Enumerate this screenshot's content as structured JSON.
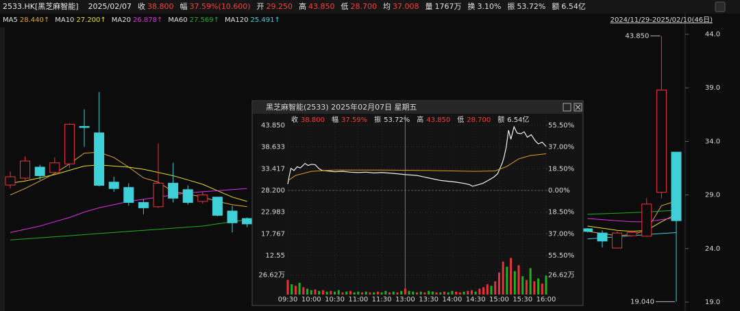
{
  "header": {
    "symbol": "2533.HK[黑芝麻智能]",
    "date": "2025/02/07",
    "items": [
      {
        "label": "收",
        "value": "38.800",
        "color": "#ff3b3b"
      },
      {
        "label": "幅",
        "value": "37.59%(10.600)",
        "color": "#ff3b3b"
      },
      {
        "label": "开",
        "value": "29.250",
        "color": "#ff3b3b"
      },
      {
        "label": "高",
        "value": "43.850",
        "color": "#ff3b3b"
      },
      {
        "label": "低",
        "value": "28.700",
        "color": "#ff3b3b"
      },
      {
        "label": "均",
        "value": "37.008",
        "color": "#ff3b3b"
      },
      {
        "label": "量",
        "value": "1767万",
        "color": "#e0e0e0"
      },
      {
        "label": "换",
        "value": "3.10%",
        "color": "#e0e0e0"
      },
      {
        "label": "振",
        "value": "53.72%",
        "color": "#e0e0e0"
      },
      {
        "label": "额",
        "value": "6.54亿",
        "color": "#e0e0e0"
      }
    ],
    "range": "2024/11/29-2025/02/10(46日)"
  },
  "chart_data": [
    {
      "type": "candlestick",
      "up_color": "#f0353d",
      "down_color": "#3fcfd6",
      "open": [
        29.93,
        30.57,
        31.6,
        31.1,
        31.9,
        35.4,
        34.8,
        30.2,
        29.7,
        28.3,
        27.9,
        30.1,
        29.5,
        28.4,
        28.8,
        27.5,
        26.8,
        null,
        null,
        null,
        null,
        null,
        null,
        null,
        null,
        null,
        null,
        null,
        null,
        null,
        null,
        null,
        null,
        null,
        null,
        null,
        null,
        null,
        null,
        25.85,
        25.45,
        24.05,
        25.2,
        25.15,
        29.25,
        33.0
      ],
      "high": [
        31.2,
        32.6,
        31.8,
        32.5,
        35.7,
        37.0,
        38.6,
        30.7,
        30.1,
        28.6,
        33.8,
        32.0,
        29.9,
        29.3,
        28.8,
        28.0,
        26.9,
        null,
        null,
        null,
        null,
        null,
        null,
        null,
        null,
        null,
        null,
        null,
        null,
        null,
        null,
        null,
        null,
        null,
        null,
        null,
        null,
        null,
        null,
        25.9,
        25.7,
        25.6,
        25.7,
        28.7,
        43.85,
        33.0
      ],
      "low": [
        29.6,
        30.4,
        30.4,
        30.9,
        31.5,
        33.5,
        29.8,
        29.3,
        28.0,
        27.2,
        27.8,
        28.3,
        28.1,
        28.2,
        27.0,
        25.5,
        26.0,
        null,
        null,
        null,
        null,
        null,
        null,
        null,
        null,
        null,
        null,
        null,
        null,
        null,
        null,
        null,
        null,
        null,
        null,
        null,
        null,
        null,
        null,
        25.5,
        24.1,
        24.0,
        25.1,
        25.1,
        28.7,
        19.04
      ],
      "close": [
        30.7,
        32.17,
        30.8,
        32.0,
        35.6,
        35.3,
        29.9,
        29.6,
        28.3,
        27.8,
        30.1,
        28.7,
        28.3,
        29.0,
        27.1,
        26.4,
        26.3,
        null,
        null,
        null,
        null,
        null,
        null,
        null,
        null,
        null,
        null,
        null,
        null,
        null,
        null,
        null,
        null,
        null,
        null,
        null,
        null,
        null,
        null,
        25.6,
        24.7,
        25.45,
        25.5,
        28.15,
        38.8,
        26.6
      ],
      "series": [
        {
          "name": "MA5",
          "legend_value": "28.440↑",
          "color": "#e0a83a",
          "values": [
            29.0,
            29.6,
            30.3,
            31.0,
            31.9,
            32.9,
            33.0,
            32.5,
            31.6,
            30.6,
            30.2,
            29.3,
            29.1,
            28.8,
            28.4,
            28.1,
            27.9,
            null,
            null,
            null,
            null,
            null,
            null,
            null,
            null,
            null,
            null,
            null,
            null,
            null,
            null,
            null,
            null,
            null,
            null,
            null,
            null,
            null,
            null,
            25.6,
            25.4,
            25.2,
            25.3,
            25.7,
            28.0,
            28.44
          ]
        },
        {
          "name": "MA10",
          "legend_value": "27.200↑",
          "color": "#e6e02a",
          "values": [
            30.1,
            30.3,
            30.6,
            30.9,
            31.3,
            31.7,
            31.8,
            31.7,
            31.6,
            31.4,
            31.1,
            30.8,
            30.4,
            30.0,
            29.4,
            28.8,
            28.4,
            null,
            null,
            null,
            null,
            null,
            null,
            null,
            null,
            null,
            null,
            null,
            null,
            null,
            null,
            null,
            null,
            null,
            null,
            null,
            null,
            null,
            null,
            26.1,
            25.9,
            25.7,
            25.6,
            25.7,
            26.5,
            27.2
          ]
        },
        {
          "name": "MA20",
          "legend_value": "26.878↑",
          "color": "#e030e0",
          "values": [
            25.5,
            25.8,
            26.1,
            26.5,
            26.9,
            27.4,
            27.8,
            28.1,
            28.4,
            28.6,
            28.8,
            29.0,
            29.2,
            29.3,
            29.4,
            29.5,
            29.6,
            null,
            null,
            null,
            null,
            null,
            null,
            null,
            null,
            null,
            null,
            null,
            null,
            null,
            null,
            null,
            null,
            null,
            null,
            null,
            null,
            null,
            null,
            26.8,
            26.7,
            26.6,
            26.5,
            26.5,
            26.7,
            26.878
          ]
        },
        {
          "name": "MA60",
          "legend_value": "27.569↑",
          "color": "#22b022",
          "values": [
            24.8,
            24.9,
            25.0,
            25.1,
            25.2,
            25.3,
            25.4,
            25.5,
            25.6,
            25.7,
            25.8,
            25.9,
            26.0,
            26.1,
            26.3,
            26.5,
            26.7,
            null,
            null,
            null,
            null,
            null,
            null,
            null,
            null,
            null,
            null,
            null,
            null,
            null,
            null,
            null,
            null,
            null,
            null,
            null,
            null,
            null,
            null,
            27.2,
            27.25,
            27.3,
            27.35,
            27.4,
            27.5,
            27.569
          ]
        },
        {
          "name": "MA120",
          "legend_value": "25.491↑",
          "color": "#3fd0e0",
          "values": [
            null,
            null,
            null,
            null,
            null,
            null,
            null,
            null,
            null,
            null,
            null,
            null,
            null,
            null,
            null,
            null,
            null,
            null,
            null,
            null,
            null,
            null,
            null,
            null,
            null,
            null,
            null,
            null,
            null,
            null,
            null,
            null,
            null,
            null,
            null,
            null,
            null,
            null,
            null,
            24.9,
            25.0,
            25.1,
            25.2,
            25.3,
            25.4,
            25.491
          ]
        }
      ],
      "ylim": [
        18.17,
        45.6
      ],
      "yticks": [
        {
          "value": 44,
          "label": "44.0"
        },
        {
          "value": 39,
          "label": "39.0"
        },
        {
          "value": 34,
          "label": "34.0"
        },
        {
          "value": 29,
          "label": "29.0"
        },
        {
          "value": 24,
          "label": "24.0"
        },
        {
          "value": 19,
          "label": "19.0"
        }
      ],
      "high_label": "43.850",
      "low_label": "19.040"
    },
    {
      "type": "line",
      "title": "黑芝麻智能(2533) 2025年02月07日 星期五",
      "info": [
        {
          "label": "收",
          "value": "38.800",
          "color": "#ff3b3b"
        },
        {
          "label": "幅",
          "value": "37.59%",
          "color": "#ff3b3b"
        },
        {
          "label": "振",
          "value": "53.72%",
          "color": "#e0e0e0"
        },
        {
          "label": "高",
          "value": "43.850",
          "color": "#ff3b3b"
        },
        {
          "label": "低",
          "value": "28.700",
          "color": "#ff3b3b"
        },
        {
          "label": "额",
          "value": "6.54亿",
          "color": "#e0e0e0"
        }
      ],
      "base": 28.2,
      "series": [
        {
          "color": "#f2f2f2",
          "x": [
            0,
            2,
            4,
            8,
            12,
            16,
            20,
            22,
            26,
            30,
            35,
            40,
            44,
            50,
            60,
            70,
            80,
            90,
            100,
            110,
            120,
            135,
            150,
            165,
            175,
            185,
            195,
            205,
            215,
            225,
            232,
            236,
            242,
            249,
            256,
            263,
            268,
            271,
            274,
            276,
            279,
            282,
            285,
            289,
            293,
            298,
            302,
            306,
            311,
            316,
            320,
            325,
            330
          ],
          "values": [
            29.7,
            31.8,
            33.5,
            33.0,
            33.9,
            33.6,
            34.3,
            34.7,
            34.2,
            34.5,
            34.4,
            33.4,
            33.0,
            32.9,
            32.7,
            32.8,
            32.6,
            32.5,
            32.6,
            32.4,
            32.5,
            32.3,
            32.0,
            31.8,
            31.4,
            31.0,
            30.6,
            30.4,
            30.2,
            29.9,
            29.6,
            29.2,
            29.5,
            29.9,
            30.6,
            31.4,
            32.2,
            33.5,
            34.8,
            36.0,
            38.5,
            42.7,
            40.5,
            43.5,
            42.0,
            41.85,
            42.3,
            41.0,
            41.6,
            40.2,
            39.4,
            39.8,
            38.8
          ]
        },
        {
          "color": "#e0a020",
          "x": [
            0,
            10,
            30,
            60,
            120,
            180,
            240,
            265,
            280,
            295,
            310,
            330
          ],
          "values": [
            30.5,
            31.8,
            32.8,
            33.1,
            33.1,
            33.0,
            32.8,
            32.9,
            34.0,
            35.8,
            36.6,
            37.008
          ]
        }
      ],
      "xlim": [
        0,
        330
      ],
      "xticks": [
        {
          "value": 0,
          "label": "09:30"
        },
        {
          "value": 30,
          "label": "10:00"
        },
        {
          "value": 60,
          "label": "10:30"
        },
        {
          "value": 90,
          "label": "11:00"
        },
        {
          "value": 120,
          "label": "11:30"
        },
        {
          "value": 150,
          "label": "13:00"
        },
        {
          "value": 180,
          "label": "13:30"
        },
        {
          "value": 210,
          "label": "14:00"
        },
        {
          "value": 240,
          "label": "14:30"
        },
        {
          "value": 270,
          "label": "15:00"
        },
        {
          "value": 300,
          "label": "15:30"
        },
        {
          "value": 330,
          "label": "16:00"
        }
      ],
      "ylim": [
        12.55,
        43.85
      ],
      "yticks": [
        {
          "value": 43.85,
          "label": "43.850"
        },
        {
          "value": 38.633,
          "label": "38.633"
        },
        {
          "value": 33.417,
          "label": "33.417"
        },
        {
          "value": 28.2,
          "label": "28.200"
        },
        {
          "value": 22.983,
          "label": "22.983"
        },
        {
          "value": 17.767,
          "label": "17.767"
        },
        12.55
      ],
      "y2lim": [
        -55.5,
        55.5
      ],
      "y2ticks": [
        {
          "value": 55.5,
          "label": "55.50%"
        },
        {
          "value": 37,
          "label": "37.00%"
        },
        {
          "value": 18.5,
          "label": "18.50%"
        },
        {
          "value": 0,
          "label": "0.00%"
        },
        {
          "value": -18.5,
          "label": "18.50%"
        },
        {
          "value": -37,
          "label": "37.00%"
        },
        {
          "value": -55.5,
          "label": "55.50%"
        }
      ]
    },
    {
      "type": "bar",
      "up_color": "#e8333c",
      "down_color": "#22b022",
      "x": [
        0,
        5,
        10,
        15,
        20,
        25,
        30,
        35,
        40,
        45,
        50,
        55,
        60,
        65,
        70,
        75,
        80,
        85,
        90,
        95,
        100,
        105,
        110,
        115,
        120,
        125,
        130,
        135,
        140,
        145,
        150,
        155,
        160,
        165,
        170,
        175,
        180,
        185,
        190,
        195,
        200,
        205,
        210,
        215,
        220,
        225,
        230,
        235,
        240,
        245,
        250,
        255,
        260,
        265,
        270,
        275,
        280,
        285,
        290,
        295,
        300,
        305,
        310,
        315,
        320,
        325,
        330
      ],
      "values": [
        20,
        14,
        12,
        16,
        10,
        8,
        6,
        7,
        5,
        6,
        4,
        5,
        4,
        6,
        3,
        4,
        5,
        3,
        4,
        3,
        4,
        3,
        3,
        4,
        3,
        5,
        3,
        4,
        3,
        5,
        8,
        5,
        4,
        3,
        4,
        3,
        5,
        4,
        3,
        3,
        4,
        3,
        5,
        4,
        3,
        4,
        5,
        6,
        4,
        8,
        10,
        14,
        12,
        18,
        30,
        45,
        38,
        50,
        32,
        40,
        25,
        20,
        36,
        18,
        22,
        15,
        26
      ],
      "up": [
        true,
        false,
        true,
        false,
        true,
        false,
        false,
        true,
        false,
        true,
        false,
        true,
        false,
        false,
        true,
        false,
        true,
        false,
        false,
        true,
        false,
        true,
        false,
        true,
        false,
        false,
        true,
        false,
        true,
        false,
        true,
        false,
        false,
        true,
        false,
        true,
        false,
        false,
        true,
        false,
        true,
        false,
        false,
        true,
        true,
        false,
        true,
        true,
        false,
        true,
        true,
        true,
        false,
        true,
        true,
        true,
        false,
        true,
        false,
        true,
        false,
        true,
        false,
        true,
        false,
        true,
        false
      ],
      "xlim": [
        0,
        330
      ],
      "ylim": [
        0,
        53.24
      ],
      "yticks": [
        {
          "value": 26.62,
          "label": "26.62万"
        }
      ]
    }
  ]
}
